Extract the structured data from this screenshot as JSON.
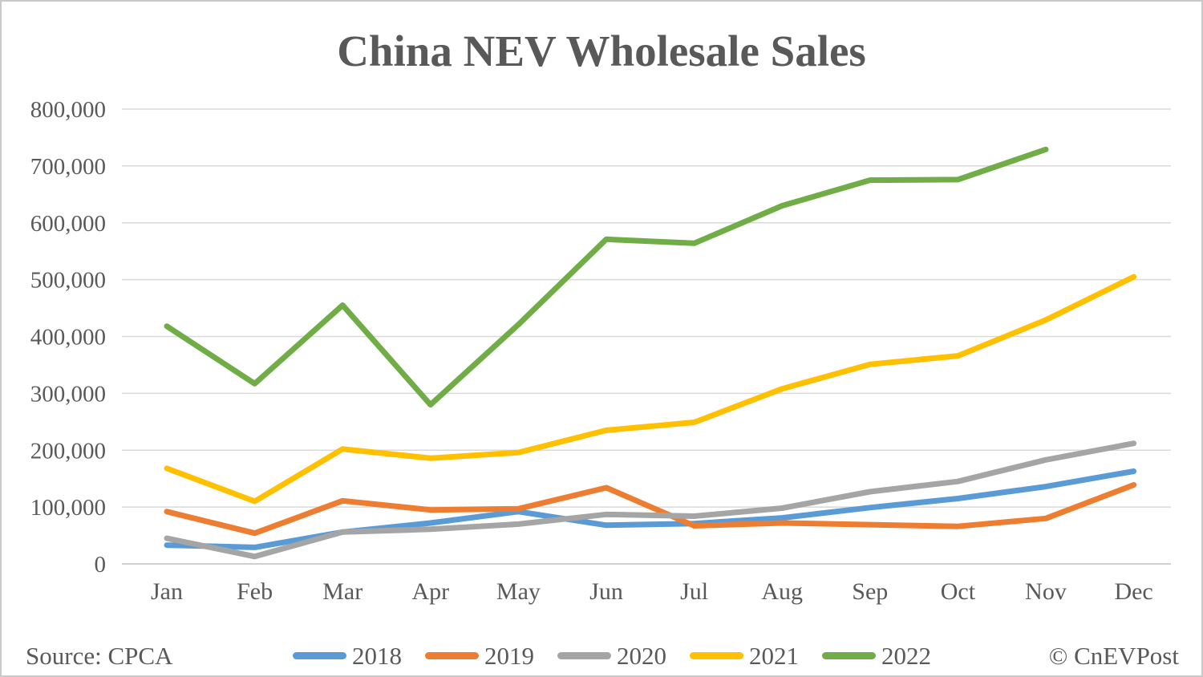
{
  "title": "China NEV Wholesale Sales",
  "footer": {
    "source": "Source: CPCA",
    "copyright": "© CnEVPost"
  },
  "colors": {
    "text": "#595959",
    "gridline": "#D9D9D9",
    "axis_line": "#BFBFBF",
    "background": "#FFFFFF",
    "border": "#C9C9C9"
  },
  "chart_data": {
    "type": "line",
    "title": "China NEV Wholesale Sales",
    "categories": [
      "Jan",
      "Feb",
      "Mar",
      "Apr",
      "May",
      "Jun",
      "Jul",
      "Aug",
      "Sep",
      "Oct",
      "Nov",
      "Dec"
    ],
    "xlabel": "",
    "ylabel": "",
    "ylim": [
      0,
      800000
    ],
    "y_ticks": [
      0,
      100000,
      200000,
      300000,
      400000,
      500000,
      600000,
      700000,
      800000
    ],
    "grid": true,
    "legend_position": "bottom",
    "series": [
      {
        "name": "2018",
        "color": "#5B9BD5",
        "values": [
          33000,
          29000,
          56000,
          72000,
          92000,
          68000,
          71000,
          81000,
          99000,
          115000,
          136000,
          163000
        ]
      },
      {
        "name": "2019",
        "color": "#ED7D31",
        "values": [
          92000,
          54000,
          111000,
          95000,
          97000,
          134000,
          67000,
          72000,
          69000,
          66000,
          80000,
          139000
        ]
      },
      {
        "name": "2020",
        "color": "#A5A5A5",
        "values": [
          45000,
          13000,
          56000,
          61000,
          70000,
          87000,
          84000,
          98000,
          127000,
          145000,
          183000,
          212000
        ]
      },
      {
        "name": "2021",
        "color": "#FFC000",
        "values": [
          168000,
          110000,
          202000,
          186000,
          196000,
          235000,
          249000,
          308000,
          351000,
          366000,
          429000,
          505000
        ]
      },
      {
        "name": "2022",
        "color": "#70AD47",
        "values": [
          418000,
          317000,
          455000,
          280000,
          421000,
          571000,
          564000,
          630000,
          675000,
          676000,
          729000,
          null
        ]
      }
    ]
  }
}
